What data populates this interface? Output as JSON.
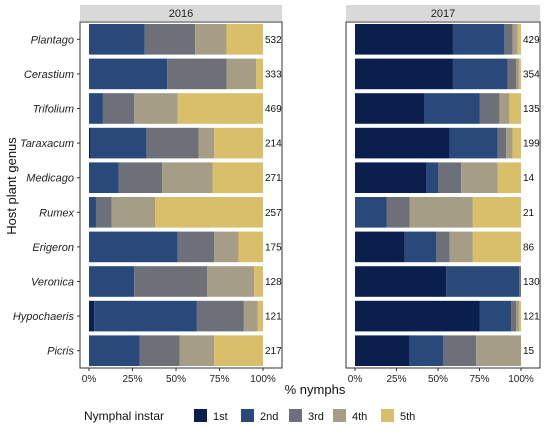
{
  "chart_data": {
    "type": "bar",
    "orientation": "horizontal",
    "stacked": true,
    "ylabel": "Host plant genus",
    "xlabel": "% nymphs",
    "xticks": [
      "0%",
      "25%",
      "50%",
      "75%",
      "100%"
    ],
    "xlim": [
      0,
      100
    ],
    "legend_title": "Nymphal instar",
    "legend_position": "bottom",
    "categories": [
      "Plantago",
      "Cerastium",
      "Trifolium",
      "Taraxacum",
      "Medicago",
      "Rumex",
      "Erigeron",
      "Veronica",
      "Hypochaeris",
      "Picris"
    ],
    "stages": [
      {
        "name": "1st",
        "color": "#0b1f4f"
      },
      {
        "name": "2nd",
        "color": "#28497a"
      },
      {
        "name": "3rd",
        "color": "#6d7079"
      },
      {
        "name": "4th",
        "color": "#a59d85"
      },
      {
        "name": "5th",
        "color": "#d9bf69"
      }
    ],
    "panels": [
      {
        "label": "2016",
        "rows": [
          {
            "genus": "Plantago",
            "n": "532",
            "values": [
              0,
              32,
              29,
              18,
              21
            ]
          },
          {
            "genus": "Cerastium",
            "n": "333",
            "values": [
              0,
              45,
              34,
              17,
              4
            ]
          },
          {
            "genus": "Trifolium",
            "n": "469",
            "values": [
              0,
              8,
              18,
              25,
              49
            ]
          },
          {
            "genus": "Taraxacum",
            "n": "214",
            "values": [
              1,
              32,
              30,
              9,
              28
            ]
          },
          {
            "genus": "Medicago",
            "n": "271",
            "values": [
              0,
              17,
              25,
              29,
              29
            ]
          },
          {
            "genus": "Rumex",
            "n": "257",
            "values": [
              0,
              4,
              9,
              25,
              62
            ]
          },
          {
            "genus": "Erigeron",
            "n": "175",
            "values": [
              0,
              51,
              21,
              14,
              14
            ]
          },
          {
            "genus": "Veronica",
            "n": "128",
            "values": [
              0,
              26,
              42,
              27,
              5
            ]
          },
          {
            "genus": "Hypochaeris",
            "n": "121",
            "values": [
              3,
              59,
              27,
              8,
              3
            ]
          },
          {
            "genus": "Picris",
            "n": "217",
            "values": [
              0,
              29,
              23,
              20,
              28
            ]
          }
        ]
      },
      {
        "label": "2017",
        "rows": [
          {
            "genus": "Plantago",
            "n": "429",
            "values": [
              59,
              31,
              5,
              3,
              2
            ]
          },
          {
            "genus": "Cerastium",
            "n": "354",
            "values": [
              59,
              33,
              5,
              2,
              1
            ]
          },
          {
            "genus": "Trifolium",
            "n": "135",
            "values": [
              42,
              33,
              12,
              6,
              7
            ]
          },
          {
            "genus": "Taraxacum",
            "n": "199",
            "values": [
              57,
              29,
              5,
              4,
              5
            ]
          },
          {
            "genus": "Medicago",
            "n": "14",
            "values": [
              43,
              7,
              14,
              22,
              14
            ]
          },
          {
            "genus": "Rumex",
            "n": "21",
            "values": [
              0,
              19,
              14,
              38,
              29
            ]
          },
          {
            "genus": "Erigeron",
            "n": "86",
            "values": [
              30,
              19,
              8,
              14,
              29
            ]
          },
          {
            "genus": "Veronica",
            "n": "130",
            "values": [
              55,
              44,
              1,
              0,
              0
            ]
          },
          {
            "genus": "Hypochaeris",
            "n": "121",
            "values": [
              75,
              19,
              3,
              2,
              1
            ]
          },
          {
            "genus": "Picris",
            "n": "15",
            "values": [
              33,
              20,
              20,
              27,
              0
            ]
          }
        ]
      }
    ]
  }
}
